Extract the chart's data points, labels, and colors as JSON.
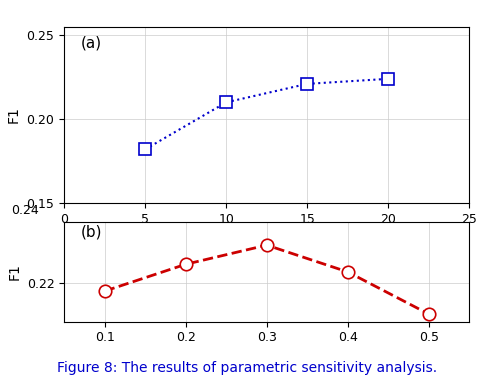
{
  "subplot_a": {
    "x": [
      5,
      10,
      15,
      20
    ],
    "y": [
      0.182,
      0.21,
      0.221,
      0.224
    ],
    "line_color": "#0000CC",
    "marker": "s",
    "linestyle": ":",
    "linewidth": 1.5,
    "markersize": 8,
    "label": "(a)",
    "xlim": [
      0,
      25
    ],
    "ylim": [
      0.15,
      0.255
    ],
    "yticks": [
      0.15,
      0.2,
      0.25
    ],
    "xticks": [
      0,
      5,
      10,
      15,
      20,
      25
    ]
  },
  "subplot_b": {
    "x": [
      0.1,
      0.2,
      0.3,
      0.4,
      0.5
    ],
    "y": [
      0.219,
      0.2225,
      0.225,
      0.2215,
      0.216
    ],
    "line_color": "#CC0000",
    "marker": "o",
    "linestyle": "--",
    "linewidth": 2.0,
    "markersize": 9,
    "label": "(b)",
    "xlim": [
      0.05,
      0.55
    ],
    "ylim": [
      0.215,
      0.228
    ],
    "yticks": [
      0.22
    ],
    "ytick_top": 0.24,
    "xticks": [
      0.1,
      0.2,
      0.3,
      0.4,
      0.5
    ]
  },
  "ylabel": "F1",
  "caption": "Figure 8: The results of parametric sensitivity analysis.",
  "caption_color": "#0000CC",
  "caption_fontsize": 10,
  "background_color": "#ffffff",
  "tick_fontsize": 9,
  "label_fontsize": 10
}
